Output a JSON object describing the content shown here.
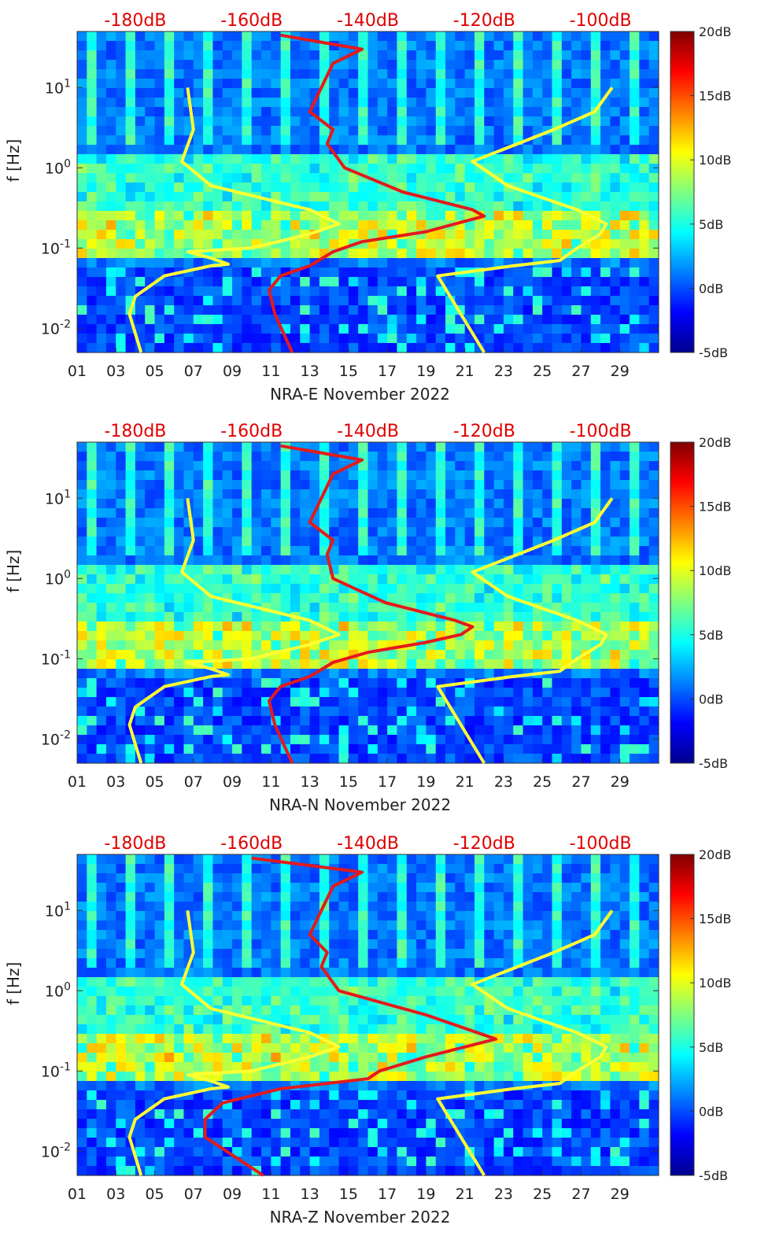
{
  "chart_data": [
    {
      "type": "heatmap",
      "xlabel": "NRA-E November 2022",
      "ylabel": "f [Hz]",
      "x_tick_labels": [
        "01",
        "03",
        "05",
        "07",
        "09",
        "11",
        "13",
        "15",
        "17",
        "19",
        "21",
        "23",
        "25",
        "27",
        "29"
      ],
      "y_tick_labels": [
        "10-2",
        "10-1",
        "100",
        "101"
      ],
      "ylim": [
        0.005,
        50
      ],
      "yscale": "log",
      "top_axis_labels": [
        "-180dB",
        "-160dB",
        "-140dB",
        "-120dB",
        "-100dB"
      ],
      "colorbar_labels": [
        "20dB",
        "15dB",
        "10dB",
        "5dB",
        "0dB",
        "-5dB"
      ],
      "colorbar_range": [
        -5,
        20
      ],
      "colormap": "jet",
      "series": [
        {
          "color": "#ffff33",
          "x_units": "dB",
          "f": [
            0.005,
            0.015,
            0.025,
            0.045,
            0.06,
            0.063,
            0.075,
            0.09,
            0.1,
            0.15,
            0.2,
            0.3,
            0.6,
            1.2,
            3,
            10
          ],
          "dB": [
            -179,
            -181,
            -180,
            -175,
            -167,
            -164,
            -167,
            -171,
            -160,
            -150,
            -145,
            -150,
            -167,
            -172,
            -170,
            -171
          ]
        },
        {
          "color": "#ffff33",
          "x_units": "dB",
          "f": [
            0.005,
            0.045,
            0.06,
            0.07,
            0.1,
            0.15,
            0.2,
            0.3,
            0.6,
            1.2,
            3,
            5,
            10
          ],
          "dB": [
            -120,
            -128,
            -115,
            -107,
            -104,
            -100,
            -99,
            -104,
            -116,
            -122,
            -108,
            -101,
            -98
          ]
        },
        {
          "color": "#e31a1c",
          "x_units": "dB",
          "f": [
            0.005,
            0.015,
            0.03,
            0.045,
            0.06,
            0.09,
            0.12,
            0.16,
            0.2,
            0.25,
            0.3,
            0.5,
            1,
            2,
            3,
            5,
            10,
            20,
            30,
            45
          ],
          "dB": [
            -153,
            -156,
            -157,
            -155,
            -150,
            -146,
            -141,
            -130,
            -125,
            -120,
            -122,
            -134,
            -144,
            -147,
            -146,
            -150,
            -148,
            -146,
            -141,
            -155
          ]
        }
      ]
    },
    {
      "type": "heatmap",
      "xlabel": "NRA-N November 2022",
      "ylabel": "f [Hz]",
      "x_tick_labels": [
        "01",
        "03",
        "05",
        "07",
        "09",
        "11",
        "13",
        "15",
        "17",
        "19",
        "21",
        "23",
        "25",
        "27",
        "29"
      ],
      "y_tick_labels": [
        "10-2",
        "10-1",
        "100",
        "101"
      ],
      "ylim": [
        0.005,
        50
      ],
      "yscale": "log",
      "top_axis_labels": [
        "-180dB",
        "-160dB",
        "-140dB",
        "-120dB",
        "-100dB"
      ],
      "colorbar_labels": [
        "20dB",
        "15dB",
        "10dB",
        "5dB",
        "0dB",
        "-5dB"
      ],
      "colorbar_range": [
        -5,
        20
      ],
      "colormap": "jet",
      "series": [
        {
          "color": "#ffff33",
          "x_units": "dB",
          "f": [
            0.005,
            0.015,
            0.025,
            0.045,
            0.06,
            0.063,
            0.075,
            0.09,
            0.1,
            0.15,
            0.2,
            0.3,
            0.6,
            1.2,
            3,
            10
          ],
          "dB": [
            -179,
            -181,
            -180,
            -175,
            -167,
            -164,
            -167,
            -171,
            -160,
            -150,
            -145,
            -150,
            -167,
            -172,
            -170,
            -171
          ]
        },
        {
          "color": "#ffff33",
          "x_units": "dB",
          "f": [
            0.005,
            0.045,
            0.06,
            0.07,
            0.1,
            0.15,
            0.2,
            0.3,
            0.6,
            1.2,
            3,
            5,
            10
          ],
          "dB": [
            -120,
            -128,
            -115,
            -107,
            -104,
            -100,
            -99,
            -104,
            -116,
            -122,
            -108,
            -101,
            -98
          ]
        },
        {
          "color": "#e31a1c",
          "x_units": "dB",
          "f": [
            0.005,
            0.015,
            0.03,
            0.045,
            0.06,
            0.09,
            0.12,
            0.16,
            0.2,
            0.25,
            0.3,
            0.5,
            1,
            2,
            3,
            5,
            10,
            20,
            30,
            45
          ],
          "dB": [
            -153,
            -156,
            -157,
            -155,
            -150,
            -146,
            -140,
            -130,
            -124,
            -122,
            -125,
            -137,
            -146,
            -147,
            -146,
            -150,
            -148,
            -146,
            -141,
            -155
          ]
        }
      ]
    },
    {
      "type": "heatmap",
      "xlabel": "NRA-Z November 2022",
      "ylabel": "f [Hz]",
      "x_tick_labels": [
        "01",
        "03",
        "05",
        "07",
        "09",
        "11",
        "13",
        "15",
        "17",
        "19",
        "21",
        "23",
        "25",
        "27",
        "29"
      ],
      "y_tick_labels": [
        "10-2",
        "10-1",
        "100",
        "101"
      ],
      "ylim": [
        0.005,
        50
      ],
      "yscale": "log",
      "top_axis_labels": [
        "-180dB",
        "-160dB",
        "-140dB",
        "-120dB",
        "-100dB"
      ],
      "colorbar_labels": [
        "20dB",
        "15dB",
        "10dB",
        "5dB",
        "0dB",
        "-5dB"
      ],
      "colorbar_range": [
        -5,
        20
      ],
      "colormap": "jet",
      "series": [
        {
          "color": "#ffff33",
          "x_units": "dB",
          "f": [
            0.005,
            0.015,
            0.025,
            0.045,
            0.06,
            0.063,
            0.075,
            0.09,
            0.1,
            0.15,
            0.2,
            0.3,
            0.6,
            1.2,
            3,
            10
          ],
          "dB": [
            -179,
            -181,
            -180,
            -175,
            -167,
            -164,
            -167,
            -171,
            -160,
            -150,
            -145,
            -150,
            -167,
            -172,
            -170,
            -171
          ]
        },
        {
          "color": "#ffff33",
          "x_units": "dB",
          "f": [
            0.005,
            0.045,
            0.06,
            0.07,
            0.1,
            0.15,
            0.2,
            0.3,
            0.6,
            1.2,
            3,
            5,
            10
          ],
          "dB": [
            -120,
            -128,
            -115,
            -107,
            -104,
            -100,
            -99,
            -104,
            -116,
            -122,
            -108,
            -101,
            -98
          ]
        },
        {
          "color": "#e31a1c",
          "x_units": "dB",
          "f": [
            0.005,
            0.015,
            0.025,
            0.04,
            0.06,
            0.08,
            0.1,
            0.15,
            0.25,
            0.5,
            1,
            2,
            3,
            5,
            10,
            20,
            30,
            45
          ],
          "dB": [
            -158,
            -168,
            -168,
            -165,
            -155,
            -140,
            -138,
            -130,
            -118,
            -130,
            -145,
            -148,
            -147,
            -150,
            -148,
            -146,
            -141,
            -160
          ]
        }
      ]
    }
  ]
}
